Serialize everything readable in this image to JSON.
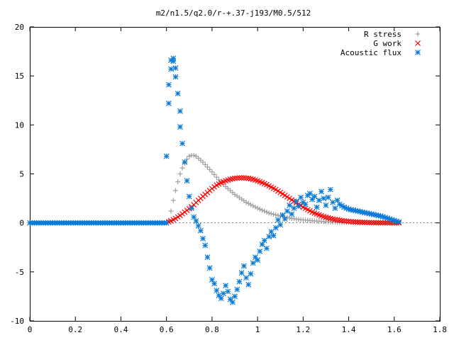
{
  "chart_data": {
    "type": "scatter",
    "title": "m2/n1.5/q2.0/r-+.37-j193/M0.5/512",
    "xlabel": "",
    "ylabel": "",
    "xlim": [
      0,
      1.8
    ],
    "ylim": [
      -10,
      20
    ],
    "grid": false,
    "legend_position": "top-right",
    "x_ticks": [
      "0",
      "0.2",
      "0.4",
      "0.6",
      "0.8",
      "1",
      "1.2",
      "1.4",
      "1.6",
      "1.8"
    ],
    "y_ticks": [
      "-10",
      "-5",
      "0",
      "5",
      "10",
      "15",
      "20"
    ],
    "series": [
      {
        "name": "R stress",
        "marker": "plus",
        "color": "#a0a0a0",
        "x": [
          0.0,
          0.6,
          0.61,
          0.62,
          0.63,
          0.64,
          0.65,
          0.66,
          0.67,
          0.68,
          0.69,
          0.7,
          0.71,
          0.72,
          0.73,
          0.74,
          0.76,
          0.78,
          0.8,
          0.83,
          0.86,
          0.9,
          0.95,
          1.0,
          1.05,
          1.1,
          1.15,
          1.2,
          1.25,
          1.3,
          1.35,
          1.4,
          1.5,
          1.6,
          1.62
        ],
        "y": [
          0.0,
          0.0,
          0.3,
          1.2,
          2.3,
          3.3,
          4.2,
          5.0,
          5.6,
          6.1,
          6.5,
          6.8,
          6.9,
          6.9,
          6.8,
          6.6,
          6.2,
          5.7,
          5.2,
          4.4,
          3.7,
          2.9,
          2.1,
          1.5,
          1.0,
          0.7,
          0.45,
          0.3,
          0.2,
          0.12,
          0.08,
          0.05,
          0.02,
          0.01,
          0.0
        ]
      },
      {
        "name": "G work",
        "marker": "cross",
        "color": "#ff0000",
        "x": [
          0.6,
          0.62,
          0.64,
          0.66,
          0.68,
          0.7,
          0.72,
          0.74,
          0.76,
          0.78,
          0.8,
          0.82,
          0.84,
          0.86,
          0.88,
          0.9,
          0.92,
          0.94,
          0.96,
          0.98,
          1.0,
          1.02,
          1.04,
          1.06,
          1.08,
          1.1,
          1.12,
          1.14,
          1.16,
          1.18,
          1.2,
          1.22,
          1.24,
          1.26,
          1.28,
          1.3,
          1.32,
          1.34,
          1.36,
          1.38,
          1.4,
          1.42,
          1.44,
          1.46,
          1.48,
          1.5,
          1.52,
          1.54,
          1.56,
          1.58,
          1.6,
          1.62
        ],
        "y": [
          0.0,
          0.2,
          0.45,
          0.75,
          1.1,
          1.45,
          1.85,
          2.3,
          2.7,
          3.1,
          3.5,
          3.85,
          4.1,
          4.3,
          4.45,
          4.55,
          4.6,
          4.6,
          4.55,
          4.45,
          4.3,
          4.1,
          3.9,
          3.65,
          3.4,
          3.1,
          2.8,
          2.5,
          2.2,
          1.9,
          1.6,
          1.35,
          1.1,
          0.9,
          0.72,
          0.57,
          0.45,
          0.35,
          0.27,
          0.2,
          0.15,
          0.11,
          0.08,
          0.06,
          0.04,
          0.03,
          0.02,
          0.01,
          0.01,
          0.0,
          0.0,
          0.0
        ]
      },
      {
        "name": "Acoustic flux",
        "marker": "asterisk",
        "color": "#0a7ad6",
        "x": [
          0.0,
          0.05,
          0.1,
          0.15,
          0.2,
          0.25,
          0.3,
          0.35,
          0.4,
          0.45,
          0.5,
          0.55,
          0.6,
          0.6,
          0.61,
          0.61,
          0.62,
          0.62,
          0.63,
          0.63,
          0.64,
          0.64,
          0.65,
          0.66,
          0.66,
          0.67,
          0.68,
          0.69,
          0.7,
          0.71,
          0.72,
          0.73,
          0.74,
          0.75,
          0.76,
          0.77,
          0.78,
          0.79,
          0.8,
          0.81,
          0.82,
          0.83,
          0.84,
          0.85,
          0.86,
          0.87,
          0.88,
          0.89,
          0.9,
          0.91,
          0.92,
          0.93,
          0.94,
          0.95,
          0.96,
          0.97,
          0.98,
          0.99,
          1.0,
          1.01,
          1.02,
          1.03,
          1.04,
          1.05,
          1.06,
          1.07,
          1.08,
          1.09,
          1.1,
          1.11,
          1.12,
          1.13,
          1.14,
          1.15,
          1.16,
          1.17,
          1.18,
          1.19,
          1.2,
          1.21,
          1.22,
          1.23,
          1.24,
          1.25,
          1.26,
          1.27,
          1.28,
          1.29,
          1.3,
          1.31,
          1.32,
          1.33,
          1.34,
          1.35,
          1.36,
          1.38,
          1.4,
          1.42,
          1.44,
          1.46,
          1.48,
          1.5,
          1.52,
          1.54,
          1.56,
          1.58,
          1.6,
          1.62
        ],
        "y": [
          0.0,
          0.0,
          0.0,
          0.0,
          0.0,
          0.0,
          0.0,
          0.0,
          0.0,
          0.0,
          0.0,
          0.0,
          0.0,
          6.8,
          12.2,
          14.1,
          15.7,
          16.6,
          16.8,
          16.5,
          15.8,
          14.9,
          13.2,
          11.4,
          9.8,
          8.1,
          6.2,
          4.3,
          2.7,
          1.5,
          0.6,
          0.2,
          -0.3,
          -0.8,
          -1.6,
          -2.3,
          -3.5,
          -4.6,
          -5.8,
          -6.2,
          -6.9,
          -7.4,
          -7.7,
          -7.2,
          -6.4,
          -7.0,
          -7.8,
          -8.1,
          -7.5,
          -6.8,
          -6.0,
          -5.1,
          -4.4,
          -5.6,
          -6.3,
          -5.2,
          -4.1,
          -3.5,
          -3.8,
          -2.9,
          -2.2,
          -1.8,
          -2.6,
          -1.4,
          -0.9,
          -1.3,
          -0.5,
          0.3,
          -0.2,
          0.8,
          0.4,
          1.2,
          1.8,
          0.9,
          1.5,
          2.2,
          1.7,
          2.6,
          2.1,
          1.9,
          2.8,
          3.0,
          2.4,
          2.7,
          1.6,
          2.3,
          3.2,
          2.5,
          1.8,
          2.6,
          3.4,
          2.1,
          1.5,
          2.3,
          1.9,
          1.6,
          1.4,
          1.3,
          1.2,
          1.1,
          1.0,
          0.9,
          0.8,
          0.7,
          0.55,
          0.4,
          0.25,
          0.1
        ]
      }
    ]
  }
}
